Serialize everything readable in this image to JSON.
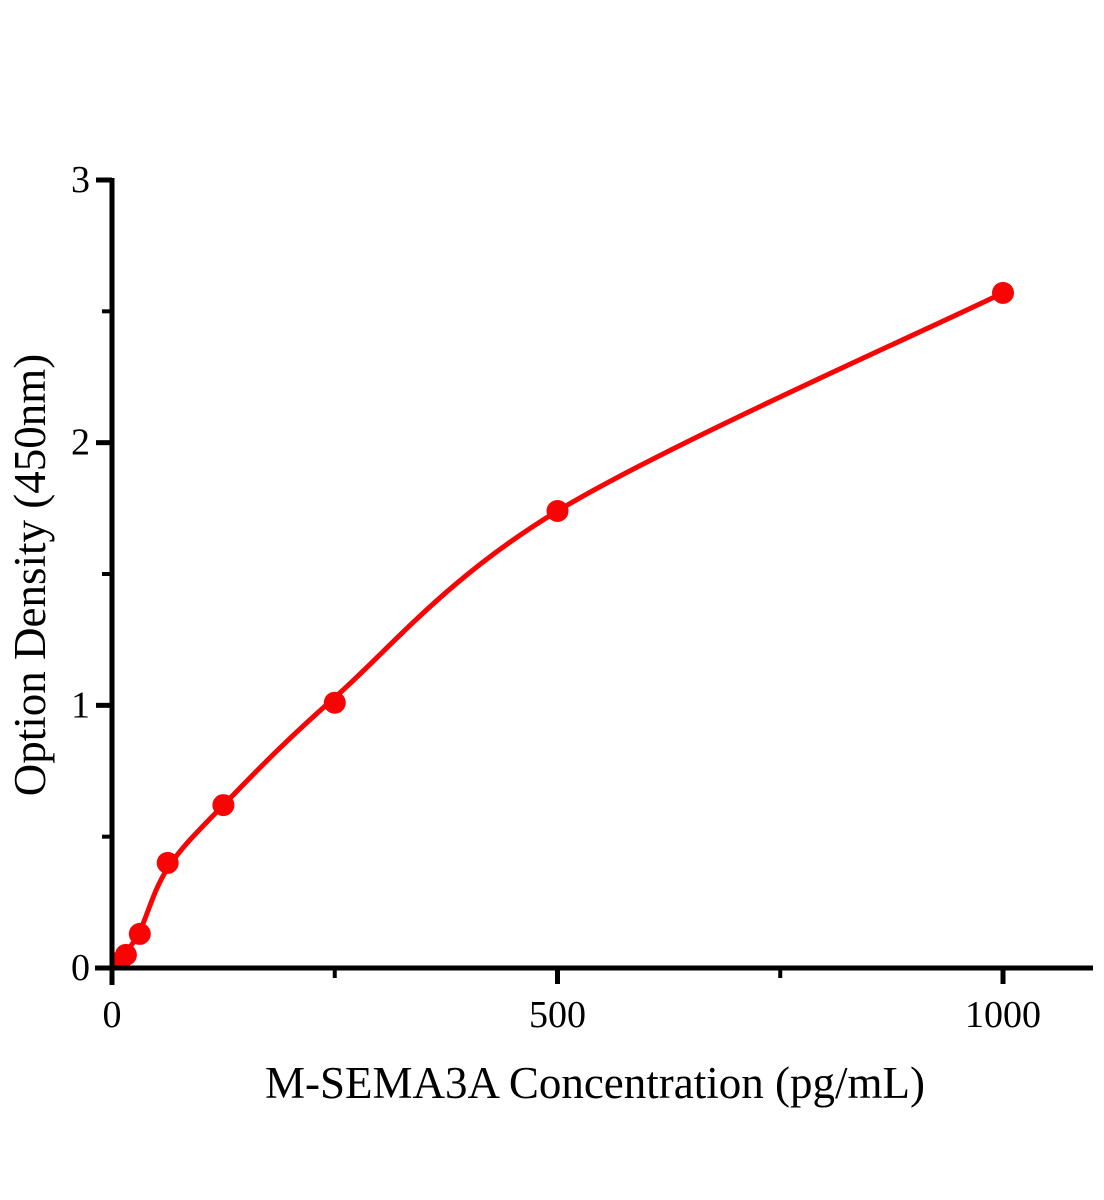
{
  "page": {
    "background": "#ffffff"
  },
  "chart_data": {
    "type": "scatter",
    "title": "",
    "xlabel": "M-SEMA3A Concentration（pg/mL）",
    "ylabel": "Option Density（450nm）",
    "points": [
      {
        "x": 7.8,
        "y": 0.02
      },
      {
        "x": 15.6,
        "y": 0.05
      },
      {
        "x": 31.2,
        "y": 0.13
      },
      {
        "x": 62.5,
        "y": 0.4
      },
      {
        "x": 125,
        "y": 0.62
      },
      {
        "x": 250,
        "y": 1.01
      },
      {
        "x": 500,
        "y": 1.74
      },
      {
        "x": 1000,
        "y": 2.57
      }
    ],
    "fit_curve_anchors": [
      [
        0,
        0.0
      ],
      [
        7.8,
        0.025
      ],
      [
        15.6,
        0.06
      ],
      [
        31.2,
        0.14
      ],
      [
        62.5,
        0.38
      ],
      [
        125,
        0.62
      ],
      [
        250,
        1.03
      ],
      [
        500,
        1.74
      ],
      [
        1000,
        2.57
      ]
    ],
    "xlim": [
      0,
      1100
    ],
    "ylim": [
      0,
      3
    ],
    "x_ticks": {
      "major": [
        {
          "value": 0,
          "label": "0"
        },
        {
          "value": 500,
          "label": "500"
        },
        {
          "value": 1000,
          "label": "1000"
        }
      ],
      "minor_values": [
        250,
        750
      ]
    },
    "y_ticks": {
      "major": [
        {
          "value": 0,
          "label": "0"
        },
        {
          "value": 1,
          "label": "1"
        },
        {
          "value": 2,
          "label": "2"
        },
        {
          "value": 3,
          "label": "3"
        }
      ],
      "minor_values": [
        0.5,
        1.5,
        2.5
      ]
    },
    "grid": false,
    "legend": null,
    "colors": {
      "curve": "#f70505",
      "points": "#f70505",
      "axis": "#000000",
      "text": "#000000"
    }
  }
}
